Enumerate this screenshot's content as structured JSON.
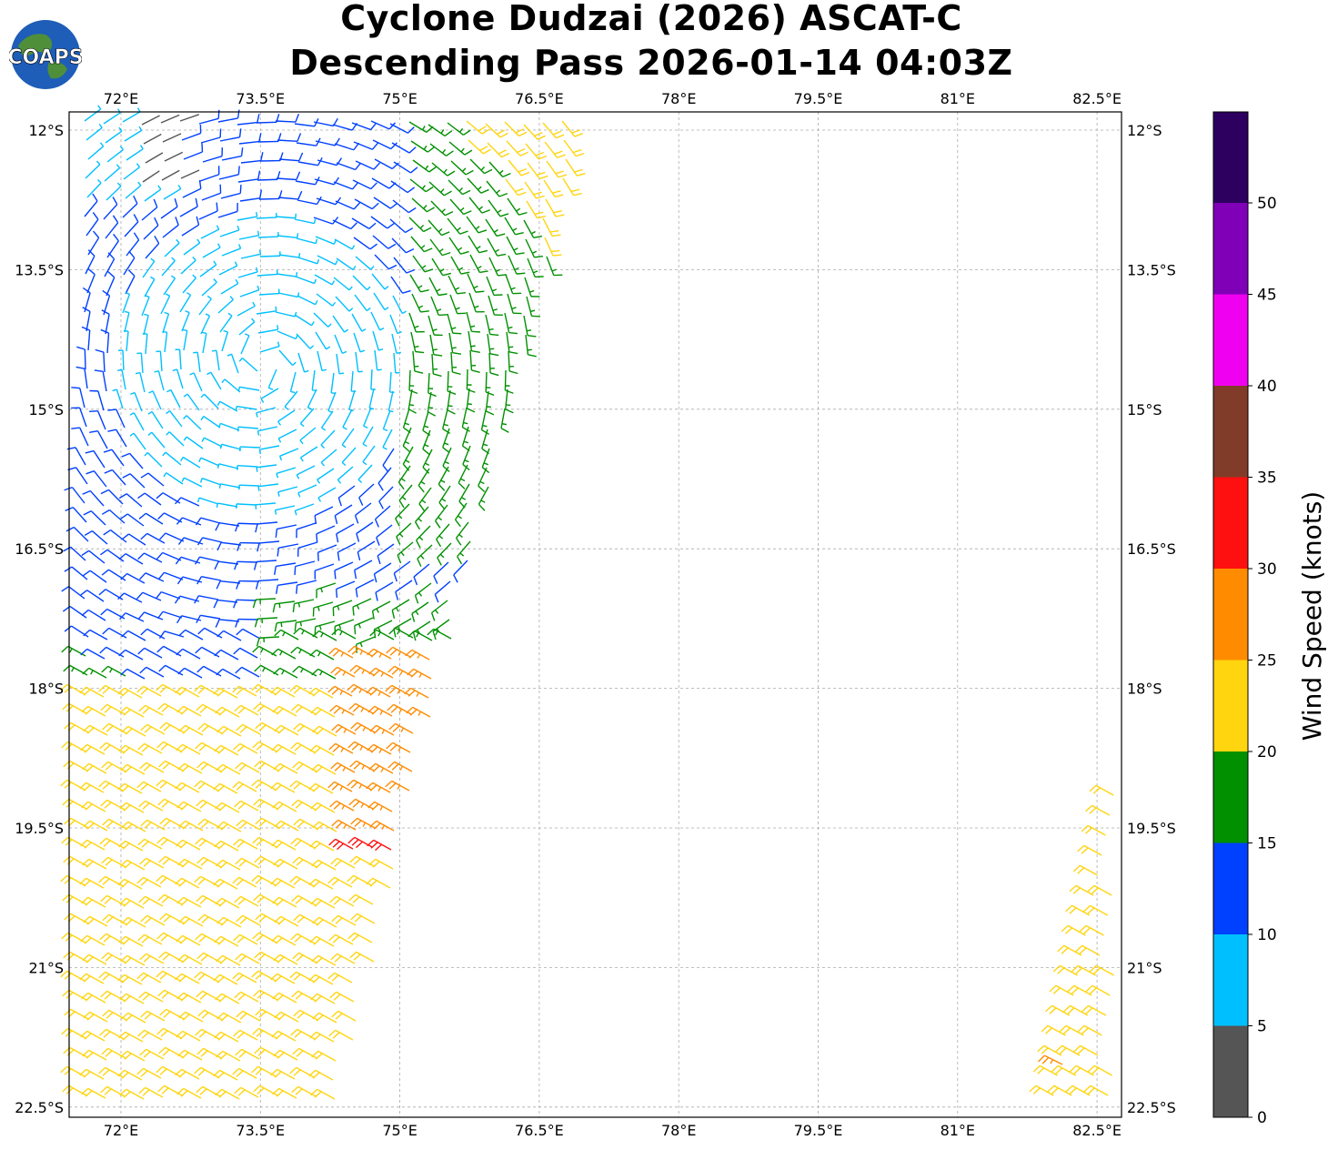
{
  "title_line1": "Cyclone Dudzai (2026) ASCAT-C",
  "title_line2": "Descending Pass 2026-01-14 04:03Z",
  "logo_text": "COAPS",
  "map": {
    "lon_ticks": [
      "72°E",
      "73.5°E",
      "75°E",
      "76.5°E",
      "78°E",
      "79.5°E",
      "81°E",
      "82.5°E"
    ],
    "lat_ticks": [
      "12°S",
      "13.5°S",
      "15°S",
      "16.5°S",
      "18°S",
      "19.5°S",
      "21°S",
      "22.5°S"
    ],
    "lon_range": [
      71.45,
      82.5
    ],
    "lat_range": [
      -11.8,
      -22.6
    ]
  },
  "colorbar": {
    "label": "Wind Speed (knots)",
    "ticks": [
      "0",
      "5",
      "10",
      "15",
      "20",
      "25",
      "30",
      "35",
      "40",
      "45",
      "50"
    ],
    "colors": [
      "#555555",
      "#00bfff",
      "#0040ff",
      "#009000",
      "#ffd510",
      "#ff8c00",
      "#ff1010",
      "#803c28",
      "#f000f0",
      "#8000b8",
      "#2d0060"
    ]
  },
  "swaths": [
    {
      "name": "main ascending-edge swath",
      "region": "71.5–76.8°E, 11.8–22.6°S"
    },
    {
      "name": "eastern swath edge",
      "region": "82.0–82.5°E, 18.6–22.6°S"
    }
  ]
}
